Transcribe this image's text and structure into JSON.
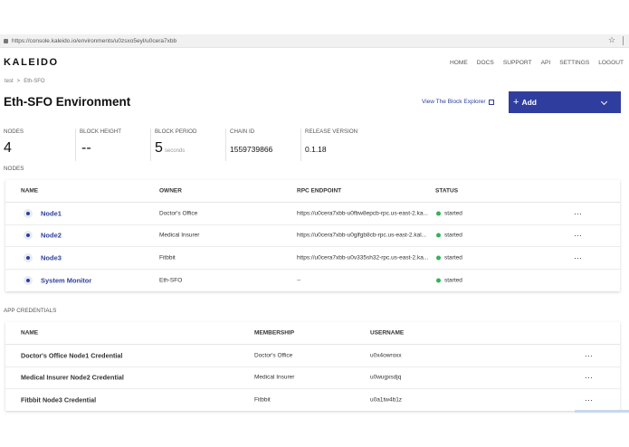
{
  "browser": {
    "url": "https://console.kaleido.io/environments/u0zsxo5eyl/u0cera7xbb",
    "star_icon": "star-icon"
  },
  "brand": {
    "logo": "KALEIDO"
  },
  "nav": {
    "items": [
      "HOME",
      "DOCS",
      "SUPPORT",
      "API",
      "SETTINGS",
      "LOGOUT"
    ]
  },
  "breadcrumb": {
    "items": [
      "test",
      "Eth-SFO"
    ],
    "separator": ">"
  },
  "header": {
    "title": "Eth-SFO Environment",
    "explorer_link": "View The Block Explorer",
    "add_label": "Add"
  },
  "stats": {
    "nodes": {
      "label": "NODES",
      "value": "4"
    },
    "block_height": {
      "label": "BLOCK HEIGHT",
      "value": "--"
    },
    "block_period": {
      "label": "BLOCK PERIOD",
      "value": "5",
      "unit": "seconds"
    },
    "chain_id": {
      "label": "CHAIN ID",
      "value": "1559739866"
    },
    "release_version": {
      "label": "RELEASE VERSION",
      "value": "0.1.18"
    }
  },
  "nodes_section": {
    "label": "NODES",
    "columns": [
      "NAME",
      "OWNER",
      "RPC ENDPOINT",
      "STATUS"
    ],
    "rows": [
      {
        "name": "Node1",
        "owner": "Doctor's Office",
        "rpc": "https://u0cera7xbb-u0fbw8epcb-rpc.us-east-2.ka...",
        "status": "started",
        "more": "···"
      },
      {
        "name": "Node2",
        "owner": "Medical Insurer",
        "rpc": "https://u0cera7xbb-u0glfgb8cb-rpc.us-east-2.kal...",
        "status": "started",
        "more": "···"
      },
      {
        "name": "Node3",
        "owner": "Fitbbit",
        "rpc": "https://u0cera7xbb-u0v335sh32-rpc.us-east-2.ka...",
        "status": "started",
        "more": "···"
      },
      {
        "name": "System Monitor",
        "owner": "Eth-SFO",
        "rpc": "--",
        "status": "started",
        "more": ""
      }
    ]
  },
  "credentials_section": {
    "label": "APP CREDENTIALS",
    "columns": [
      "NAME",
      "MEMBERSHIP",
      "USERNAME"
    ],
    "rows": [
      {
        "name": "Doctor's Office Node1 Credential",
        "membership": "Doctor's Office",
        "username": "u0x4owroxx",
        "more": "···"
      },
      {
        "name": "Medical Insurer Node2 Credential",
        "membership": "Medical Insurer",
        "username": "u0wugxsdjq",
        "more": "···"
      },
      {
        "name": "Fitbbit Node3 Credential",
        "membership": "Fitbbit",
        "username": "u0a1tw4b1z",
        "more": "···"
      }
    ]
  },
  "colors": {
    "accent": "#2f3e9e",
    "status_started": "#33b35a"
  }
}
